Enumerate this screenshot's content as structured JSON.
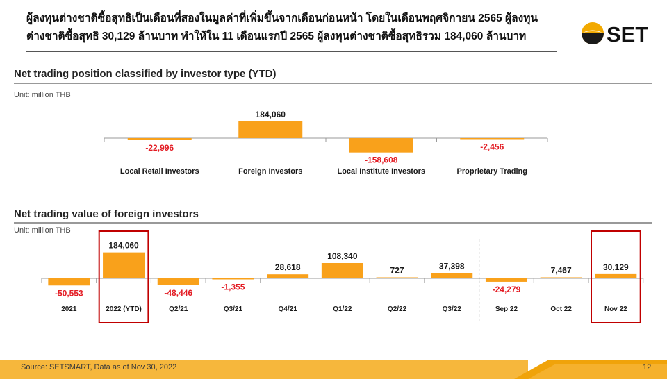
{
  "headline": "ผู้ลงทุนต่างชาติซื้อสุทธิเป็นเดือนที่สองในมูลค่าที่เพิ่มขึ้นจากเดือนก่อนหน้า โดยในเดือนพฤศจิกายน 2565 ผู้ลงทุนต่างชาติซื้อสุทธิ 30,129 ล้านบาท ทำให้ใน 11 เดือนแรกปี 2565 ผู้ลงทุนต่างชาติซื้อสุทธิรวม 184,060 ล้านบาท",
  "logo": {
    "text": "SET",
    "icon": "set-sun-logo-icon"
  },
  "colors": {
    "bar": "#F9A11B",
    "negative": "#E31B23",
    "highlight_box": "#C00000",
    "text": "#1a1a1a",
    "footer": "#F6B73C"
  },
  "footer": {
    "source": "Source: SETSMART, Data as of Nov 30, 2022",
    "page": "12"
  },
  "chart_data": [
    {
      "type": "bar",
      "title": "Net trading position classified by investor type (YTD)",
      "unit": "Unit: million THB",
      "categories": [
        "Local Retail Investors",
        "Foreign Investors",
        "Local Institute Investors",
        "Proprietary Trading"
      ],
      "values": [
        -22996,
        184060,
        -158608,
        -2456
      ],
      "value_labels": [
        "-22,996",
        "184,060",
        "-158,608",
        "-2,456"
      ],
      "grid": false
    },
    {
      "type": "bar",
      "title": "Net trading value of foreign investors",
      "unit": "Unit: million THB",
      "categories": [
        "2021",
        "2022 (YTD)",
        "Q2/21",
        "Q3/21",
        "Q4/21",
        "Q1/22",
        "Q2/22",
        "Q3/22",
        "Sep 22",
        "Oct 22",
        "Nov 22"
      ],
      "values": [
        -50553,
        184060,
        -48446,
        -1355,
        28618,
        108340,
        727,
        37398,
        -24279,
        7467,
        30129
      ],
      "value_labels": [
        "-50,553",
        "184,060",
        "-48,446",
        "-1,355",
        "28,618",
        "108,340",
        "727",
        "37,398",
        "-24,279",
        "7,467",
        "30,129"
      ],
      "highlighted": [
        "2022 (YTD)",
        "Nov 22"
      ],
      "grid": false
    }
  ]
}
